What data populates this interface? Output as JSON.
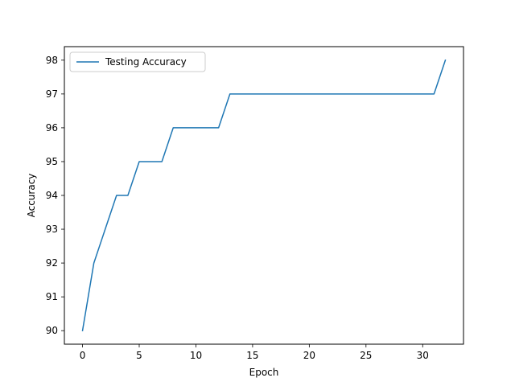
{
  "chart_data": {
    "type": "line",
    "title": "",
    "xlabel": "Epoch",
    "ylabel": "Accuracy",
    "xlim": [
      -1.6,
      33.6
    ],
    "ylim": [
      89.6,
      98.4
    ],
    "xticks": [
      0,
      5,
      10,
      15,
      20,
      25,
      30
    ],
    "xtick_labels": [
      "0",
      "5",
      "10",
      "15",
      "20",
      "25",
      "30"
    ],
    "yticks": [
      90,
      91,
      92,
      93,
      94,
      95,
      96,
      97,
      98
    ],
    "ytick_labels": [
      "90",
      "91",
      "92",
      "93",
      "94",
      "95",
      "96",
      "97",
      "98"
    ],
    "grid": false,
    "legend_position": "top-left",
    "series": [
      {
        "name": "Testing Accuracy",
        "color": "#1f77b4",
        "x": [
          0,
          1,
          2,
          3,
          4,
          5,
          6,
          7,
          8,
          9,
          10,
          11,
          12,
          13,
          14,
          15,
          16,
          17,
          18,
          19,
          20,
          21,
          22,
          23,
          24,
          25,
          26,
          27,
          28,
          29,
          30,
          31,
          32
        ],
        "y": [
          90,
          92,
          93,
          94,
          94,
          95,
          95,
          95,
          96,
          96,
          96,
          96,
          96,
          97,
          97,
          97,
          97,
          97,
          97,
          97,
          97,
          97,
          97,
          97,
          97,
          97,
          97,
          97,
          97,
          97,
          97,
          97,
          98
        ]
      }
    ]
  }
}
